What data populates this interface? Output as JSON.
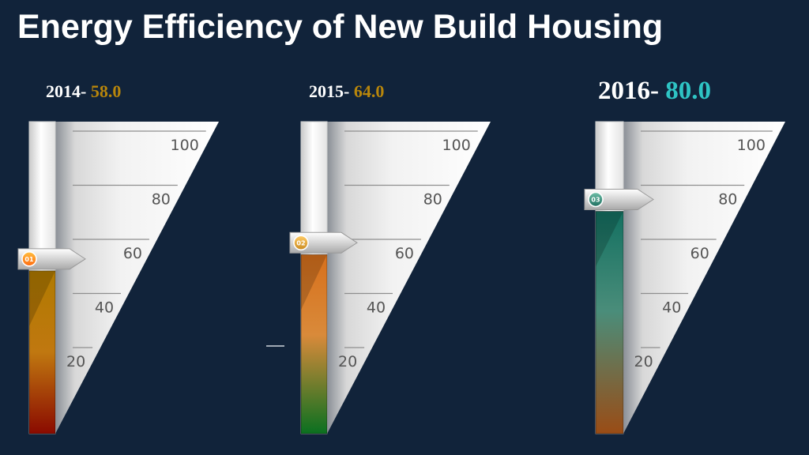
{
  "title": "Energy Efficiency of New Build Housing",
  "colors": {
    "background": "#11233a",
    "title": "#ffffff",
    "value_gold": "#b8860b",
    "value_teal": "#2ec4c4"
  },
  "chart_data": {
    "type": "bar",
    "title": "Energy Efficiency of New Build Housing",
    "categories": [
      "2014",
      "2015",
      "2016"
    ],
    "values": [
      58.0,
      64.0,
      80.0
    ],
    "value_labels": [
      "58.0",
      "64.0",
      "80.0"
    ],
    "year_labels": [
      "2014-",
      "2015-",
      "2016-"
    ],
    "markers": [
      "01",
      "02",
      "03"
    ],
    "ylim": [
      0,
      100
    ],
    "yticks": [
      "20",
      "40",
      "60",
      "80",
      "100"
    ],
    "grid": true,
    "legend": "none"
  }
}
